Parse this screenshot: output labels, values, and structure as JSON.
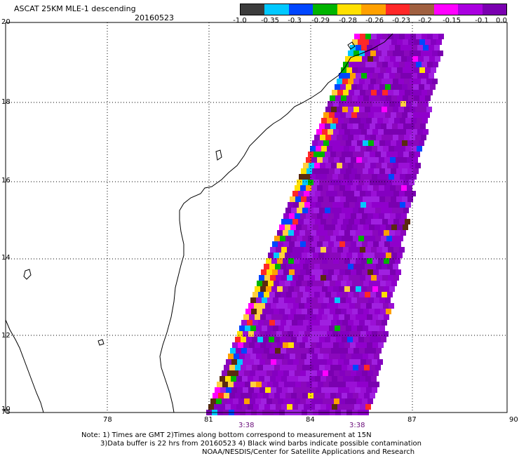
{
  "header": {
    "title": "ASCAT 25KM MLE-1 descending",
    "date": "20160523"
  },
  "colorbar": {
    "labels": [
      "-1.0",
      "-0.35",
      "-0.3",
      "-0.29",
      "-0.28",
      "-0.26",
      "-0.23",
      "-0.2",
      "-0.15",
      "-0.1",
      "0.0"
    ],
    "colors": [
      "#3c3c3c",
      "#00c8ff",
      "#0046ff",
      "#00b400",
      "#ffe000",
      "#ffa000",
      "#ff2828",
      "#a06040",
      "#ff00ff",
      "#aa00e0",
      "#7a00b0"
    ]
  },
  "axes": {
    "x_ticks": [
      "75",
      "78",
      "81",
      "84",
      "87",
      "90"
    ],
    "y_ticks": [
      "20",
      "18",
      "16",
      "14",
      "12",
      "10"
    ]
  },
  "times": [
    "3:38",
    "3:38"
  ],
  "notes": {
    "line1": "Note: 1) Times are GMT 2)Times along bottom correspond to measurement at 15N",
    "line2": "3)Data buffer is 22 hrs from 20160523 4) Black wind barbs indicate possible contamination",
    "line3": "NOAA/NESDIS/Center for Satellite Applications and Research"
  }
}
